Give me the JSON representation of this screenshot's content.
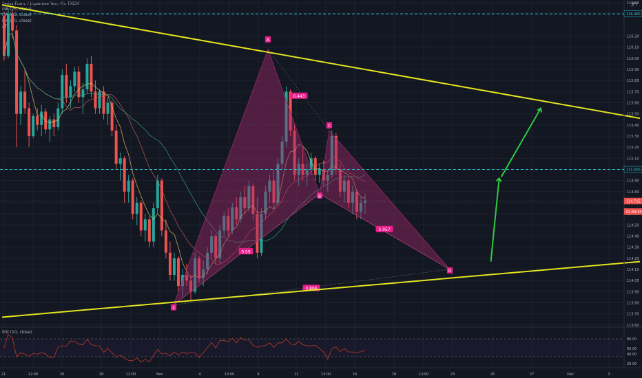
{
  "header": {
    "title": "Swiss Franc / Japanese Yen, 4h, FXCM",
    "indicators": [
      "MA (25, close)",
      "MA (25, close)",
      "MA (50, close)",
      "ATR"
    ],
    "currency_button": "JPY"
  },
  "rsi": {
    "label": "RSI (10, close)",
    "ticks": [
      "80.00",
      "60.00",
      "40.00",
      "20.00"
    ]
  },
  "colors": {
    "background": "#131722",
    "trendline": "#e5e51f",
    "pattern_fill": "#9c2768",
    "pattern_label_bg": "#e91e8c",
    "arrow": "#2ecc40",
    "dashed": "#26c6da",
    "up_candle": "#26a69a",
    "down_candle": "#ef5350",
    "rsi_line": "#c0392b"
  },
  "chart_data": {
    "type": "candlestick",
    "symbol": "CHFJPY",
    "timeframe": "4h",
    "y_ticks": [
      "116.50",
      "116.40",
      "116.20",
      "116.10",
      "116.00",
      "115.90",
      "115.80",
      "115.70",
      "115.60",
      "115.50",
      "115.40",
      "115.30",
      "115.20",
      "115.10",
      "115.00",
      "114.90",
      "114.80",
      "114.70",
      "114.60",
      "114.50",
      "114.40",
      "114.30",
      "114.20",
      "114.10",
      "114.00",
      "113.90",
      "113.80",
      "113.70",
      "113.60"
    ],
    "ylim": [
      113.58,
      116.5
    ],
    "x_ticks": [
      "21",
      "12:00",
      "26",
      "28",
      "12:00",
      "Nov",
      "4",
      "13:00",
      "9",
      "11",
      "13:00",
      "16",
      "18",
      "13:00",
      "23",
      "25",
      "27",
      "Dec",
      "3"
    ],
    "price_labels": [
      {
        "text": "116.400",
        "price": 116.4,
        "style": "dashed"
      },
      {
        "text": "115.000",
        "price": 115.0,
        "style": "dashed"
      },
      {
        "text": "114.715",
        "price": 114.715,
        "style": "current"
      },
      {
        "text": "02:49:34",
        "price": 114.62,
        "style": "timer"
      }
    ],
    "trendlines": [
      {
        "name": "upper",
        "from": {
          "x": "19 Oct",
          "price": 116.48
        },
        "to": {
          "x": "4 Dec",
          "price": 115.46
        }
      },
      {
        "name": "lower",
        "from": {
          "x": "19 Oct",
          "price": 113.67
        },
        "to": {
          "x": "4 Dec",
          "price": 114.17
        }
      }
    ],
    "harmonic_pattern": {
      "points": [
        {
          "label": "X",
          "price": 113.78
        },
        {
          "label": "A",
          "price": 116.08
        },
        {
          "label": "B",
          "price": 114.78
        },
        {
          "label": "C",
          "price": 115.35
        },
        {
          "label": "D",
          "price": 114.1
        }
      ],
      "ratios": [
        "0.443",
        "0.59",
        "2.057",
        "0.866"
      ]
    },
    "projection_arrow": [
      {
        "x": "23 Nov",
        "price": 114.17
      },
      {
        "x": "24 Nov",
        "price": 114.92
      },
      {
        "x": "27 Nov",
        "price": 115.55
      }
    ],
    "candles": [
      [
        116.38,
        116.42,
        115.98,
        116.02
      ],
      [
        116.02,
        116.45,
        116.0,
        116.4
      ],
      [
        116.4,
        116.43,
        116.18,
        116.25
      ],
      [
        116.25,
        116.3,
        115.2,
        115.5
      ],
      [
        115.5,
        115.75,
        115.4,
        115.7
      ],
      [
        115.7,
        115.9,
        115.5,
        115.55
      ],
      [
        115.55,
        115.6,
        115.2,
        115.3
      ],
      [
        115.3,
        115.5,
        115.28,
        115.48
      ],
      [
        115.48,
        115.55,
        115.35,
        115.4
      ],
      [
        115.4,
        115.58,
        115.3,
        115.52
      ],
      [
        115.52,
        115.55,
        115.32,
        115.36
      ],
      [
        115.36,
        115.48,
        115.25,
        115.45
      ],
      [
        115.45,
        115.5,
        115.3,
        115.38
      ],
      [
        115.38,
        115.6,
        115.35,
        115.55
      ],
      [
        115.55,
        115.9,
        115.5,
        115.85
      ],
      [
        115.85,
        115.95,
        115.6,
        115.65
      ],
      [
        115.65,
        115.8,
        115.55,
        115.75
      ],
      [
        115.75,
        115.92,
        115.7,
        115.88
      ],
      [
        115.88,
        115.93,
        115.6,
        115.65
      ],
      [
        115.65,
        115.78,
        115.5,
        115.72
      ],
      [
        115.72,
        116.0,
        115.68,
        115.95
      ],
      [
        115.95,
        116.02,
        115.65,
        115.7
      ],
      [
        115.7,
        115.8,
        115.5,
        115.55
      ],
      [
        115.55,
        115.72,
        115.5,
        115.7
      ],
      [
        115.7,
        115.75,
        115.45,
        115.5
      ],
      [
        115.5,
        115.65,
        115.4,
        115.6
      ],
      [
        115.6,
        115.62,
        115.3,
        115.35
      ],
      [
        115.35,
        115.4,
        115.0,
        115.05
      ],
      [
        115.05,
        115.15,
        114.9,
        115.1
      ],
      [
        115.1,
        115.12,
        114.7,
        114.8
      ],
      [
        114.8,
        114.95,
        114.7,
        114.9
      ],
      [
        114.9,
        114.92,
        114.55,
        114.6
      ],
      [
        114.6,
        114.75,
        114.5,
        114.7
      ],
      [
        114.7,
        114.72,
        114.4,
        114.45
      ],
      [
        114.45,
        114.6,
        114.35,
        114.55
      ],
      [
        114.55,
        114.58,
        114.3,
        114.35
      ],
      [
        114.35,
        114.7,
        114.3,
        114.65
      ],
      [
        114.65,
        114.95,
        114.6,
        114.9
      ],
      [
        114.9,
        114.92,
        114.4,
        114.45
      ],
      [
        114.45,
        114.55,
        114.2,
        114.25
      ],
      [
        114.25,
        114.35,
        114.0,
        114.05
      ],
      [
        114.05,
        114.25,
        114.0,
        114.2
      ],
      [
        114.2,
        114.22,
        113.9,
        113.95
      ],
      [
        113.95,
        114.1,
        113.85,
        114.05
      ],
      [
        114.05,
        114.15,
        113.95,
        114.0
      ],
      [
        114.0,
        114.05,
        113.82,
        113.9
      ],
      [
        113.9,
        114.25,
        113.88,
        114.2
      ],
      [
        114.2,
        114.22,
        113.98,
        114.02
      ],
      [
        114.02,
        114.18,
        113.95,
        114.1
      ],
      [
        114.1,
        114.3,
        114.05,
        114.25
      ],
      [
        114.25,
        114.45,
        114.2,
        114.4
      ],
      [
        114.4,
        114.42,
        114.15,
        114.2
      ],
      [
        114.2,
        114.5,
        114.15,
        114.45
      ],
      [
        114.45,
        114.62,
        114.4,
        114.58
      ],
      [
        114.58,
        114.65,
        114.4,
        114.45
      ],
      [
        114.45,
        114.7,
        114.42,
        114.66
      ],
      [
        114.66,
        114.75,
        114.5,
        114.55
      ],
      [
        114.55,
        114.8,
        114.52,
        114.75
      ],
      [
        114.75,
        114.85,
        114.6,
        114.65
      ],
      [
        114.65,
        114.9,
        114.62,
        114.85
      ],
      [
        114.85,
        114.88,
        114.55,
        114.6
      ],
      [
        114.6,
        114.75,
        114.2,
        114.25
      ],
      [
        114.25,
        114.65,
        114.22,
        114.6
      ],
      [
        114.6,
        114.85,
        114.55,
        114.8
      ],
      [
        114.8,
        114.95,
        114.7,
        114.9
      ],
      [
        114.9,
        115.0,
        114.65,
        114.7
      ],
      [
        114.7,
        115.1,
        114.68,
        115.05
      ],
      [
        115.05,
        115.3,
        115.0,
        115.25
      ],
      [
        115.25,
        115.75,
        115.2,
        115.7
      ],
      [
        115.7,
        115.72,
        115.3,
        115.35
      ],
      [
        115.35,
        115.4,
        114.9,
        114.95
      ],
      [
        114.95,
        115.1,
        114.85,
        115.05
      ],
      [
        115.05,
        115.2,
        114.9,
        114.95
      ],
      [
        114.95,
        115.05,
        114.85,
        115.0
      ],
      [
        115.0,
        115.15,
        114.95,
        115.1
      ],
      [
        115.1,
        115.12,
        114.9,
        114.95
      ],
      [
        114.95,
        115.05,
        114.88,
        115.0
      ],
      [
        115.0,
        115.08,
        114.85,
        114.9
      ],
      [
        114.9,
        115.0,
        114.8,
        114.95
      ],
      [
        114.95,
        115.35,
        114.92,
        115.3
      ],
      [
        115.3,
        115.33,
        114.95,
        115.0
      ],
      [
        115.0,
        115.05,
        114.75,
        114.8
      ],
      [
        114.8,
        114.95,
        114.7,
        114.9
      ],
      [
        114.9,
        114.92,
        114.65,
        114.7
      ],
      [
        114.7,
        114.85,
        114.6,
        114.8
      ],
      [
        114.8,
        114.82,
        114.55,
        114.62
      ],
      [
        114.62,
        114.75,
        114.55,
        114.7
      ],
      [
        114.7,
        114.78,
        114.6,
        114.72
      ]
    ]
  }
}
